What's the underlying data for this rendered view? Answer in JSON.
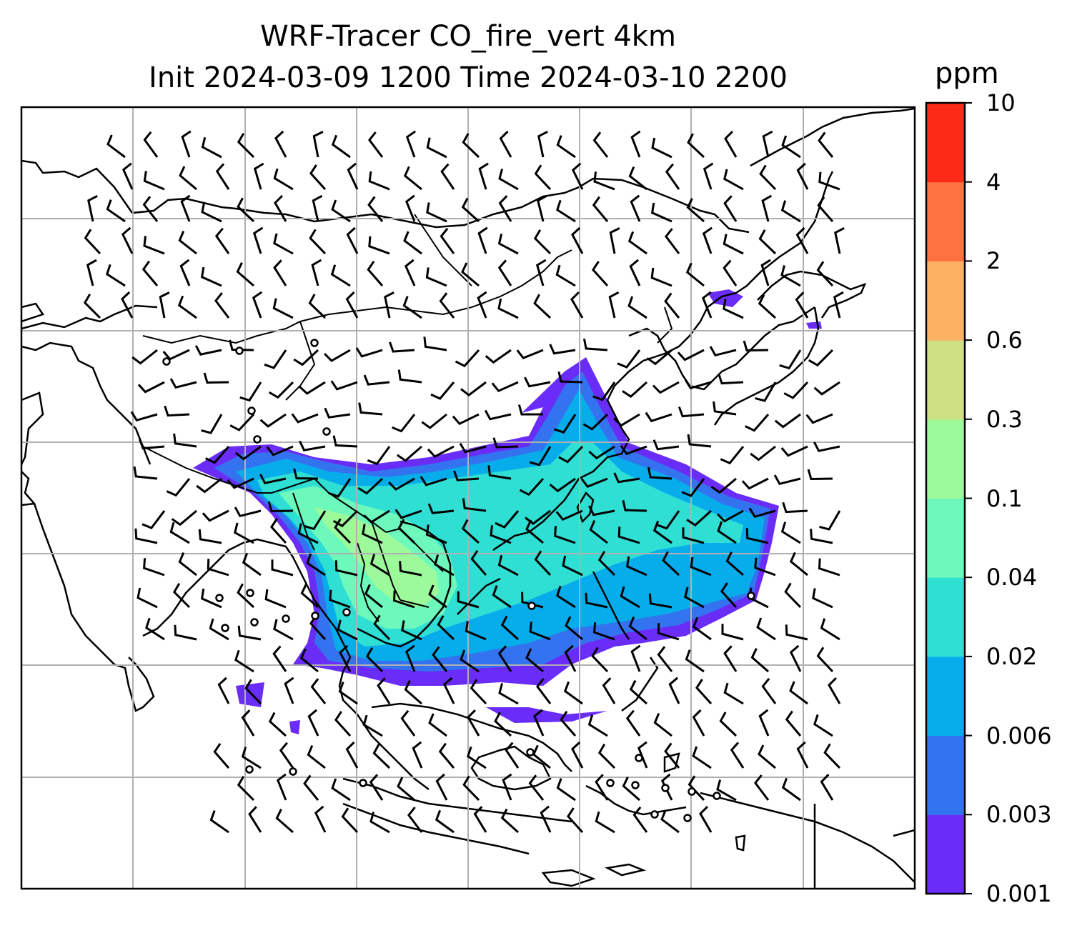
{
  "title_line1": "WRF-Tracer CO_fire_vert 4km",
  "title_line2": "Init 2024-03-09 1200 Time 2024-03-10 2200",
  "colorbar": {
    "units": "ppm",
    "ticks": [
      "0.001",
      "0.003",
      "0.006",
      "0.02",
      "0.04",
      "0.1",
      "0.3",
      "0.6",
      "2",
      "4",
      "10"
    ],
    "colors": [
      "#6a2cf7",
      "#3473f0",
      "#06adea",
      "#2fdfd4",
      "#6cf9bb",
      "#9dfa9b",
      "#cfe083",
      "#fdb263",
      "#fe7140",
      "#fd2a17"
    ]
  },
  "map": {
    "grid": "on",
    "features": [
      "coastlines",
      "country-borders",
      "wind-barbs",
      "calm-circles",
      "tracer-plume"
    ]
  }
}
